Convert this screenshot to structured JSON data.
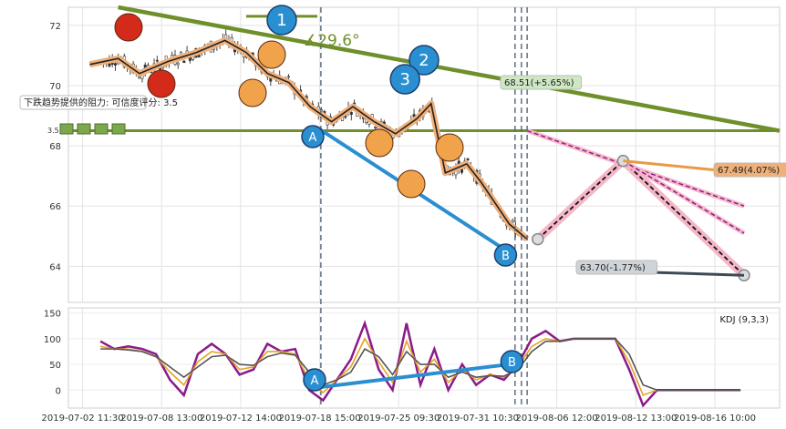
{
  "chart_data": [
    {
      "type": "candlestick",
      "x_labels": [
        "2019-07-02 11:30",
        "2019-07-08 13:00",
        "2019-07-12 14:00",
        "2019-07-18 15:00",
        "2019-07-25 09:30",
        "2019-07-31 10:30",
        "2019-08-06 12:00",
        "2019-08-12 13:00",
        "2019-08-16 10:00"
      ],
      "y_ticks": [
        64,
        66,
        68,
        70,
        72
      ],
      "ylim": [
        62.8,
        72.6
      ],
      "trend_channel_y": 68.5,
      "annotations": {
        "angle": "∡29.6°",
        "resistance": "下跌趋势提供的阻力: 可信度评分: 3.5",
        "stars_score": "3.5",
        "target_up": "68.51(+5.65%)",
        "target_mid": "67.49(4.07%)",
        "target_low": "63.70(-1.77%)"
      },
      "wave_markers": [
        {
          "label": "1",
          "x": 0.3,
          "y": 72.3
        },
        {
          "label": "2",
          "x": 0.5,
          "y": 70.6
        },
        {
          "label": "3",
          "x": 0.64,
          "y": 69.9
        },
        {
          "label": "A",
          "x": 0.35,
          "y": 68.6
        },
        {
          "label": "B",
          "x": 0.63,
          "y": 64.3
        }
      ],
      "projection": [
        {
          "x": 0.66,
          "y": 64.9
        },
        {
          "x": 0.78,
          "y": 67.5
        },
        {
          "x": 0.95,
          "y": 63.7
        }
      ],
      "price_path": [
        {
          "x": 0.03,
          "y": 70.7
        },
        {
          "x": 0.07,
          "y": 70.9
        },
        {
          "x": 0.1,
          "y": 70.4
        },
        {
          "x": 0.14,
          "y": 70.8
        },
        {
          "x": 0.18,
          "y": 71.1
        },
        {
          "x": 0.22,
          "y": 71.5
        },
        {
          "x": 0.25,
          "y": 71.1
        },
        {
          "x": 0.28,
          "y": 70.4
        },
        {
          "x": 0.31,
          "y": 70.1
        },
        {
          "x": 0.34,
          "y": 69.3
        },
        {
          "x": 0.37,
          "y": 68.8
        },
        {
          "x": 0.4,
          "y": 69.3
        },
        {
          "x": 0.43,
          "y": 68.8
        },
        {
          "x": 0.46,
          "y": 68.4
        },
        {
          "x": 0.49,
          "y": 68.9
        },
        {
          "x": 0.51,
          "y": 69.4
        },
        {
          "x": 0.53,
          "y": 67.1
        },
        {
          "x": 0.56,
          "y": 67.4
        },
        {
          "x": 0.58,
          "y": 66.8
        },
        {
          "x": 0.6,
          "y": 66.1
        },
        {
          "x": 0.62,
          "y": 65.4
        },
        {
          "x": 0.645,
          "y": 64.9
        }
      ]
    },
    {
      "type": "line",
      "title": "KDJ (9,3,3)",
      "y_ticks": [
        0,
        50,
        100,
        150
      ],
      "ylim": [
        -35,
        160
      ],
      "wave_markers": [
        {
          "label": "A",
          "x": 0.35,
          "y": 5
        },
        {
          "label": "B",
          "x": 0.63,
          "y": 50
        }
      ],
      "series": [
        {
          "color": "#8b1a8b",
          "values": [
            95,
            80,
            85,
            80,
            70,
            20,
            -10,
            70,
            90,
            70,
            30,
            40,
            90,
            75,
            80,
            0,
            -20,
            20,
            60,
            130,
            40,
            0,
            130,
            10,
            80,
            0,
            50,
            10,
            30,
            20,
            50,
            100,
            115,
            95,
            100,
            100,
            100,
            100,
            40,
            -30,
            0,
            0,
            0,
            0,
            0,
            0,
            0
          ]
        },
        {
          "color": "#e5a324",
          "values": [
            85,
            80,
            80,
            75,
            65,
            35,
            10,
            55,
            75,
            70,
            40,
            45,
            75,
            75,
            70,
            20,
            -5,
            20,
            45,
            100,
            55,
            15,
            95,
            35,
            60,
            15,
            40,
            20,
            30,
            25,
            45,
            85,
            100,
            95,
            100,
            100,
            100,
            100,
            55,
            -10,
            0,
            0,
            0,
            0,
            0,
            0,
            0
          ]
        },
        {
          "color": "#555555",
          "values": [
            80,
            80,
            78,
            75,
            65,
            45,
            25,
            45,
            65,
            68,
            50,
            48,
            65,
            72,
            68,
            35,
            10,
            20,
            35,
            80,
            65,
            30,
            75,
            50,
            50,
            25,
            35,
            25,
            28,
            27,
            40,
            75,
            95,
            95,
            100,
            100,
            100,
            100,
            70,
            10,
            0,
            0,
            0,
            0,
            0,
            0,
            0
          ]
        }
      ]
    }
  ]
}
